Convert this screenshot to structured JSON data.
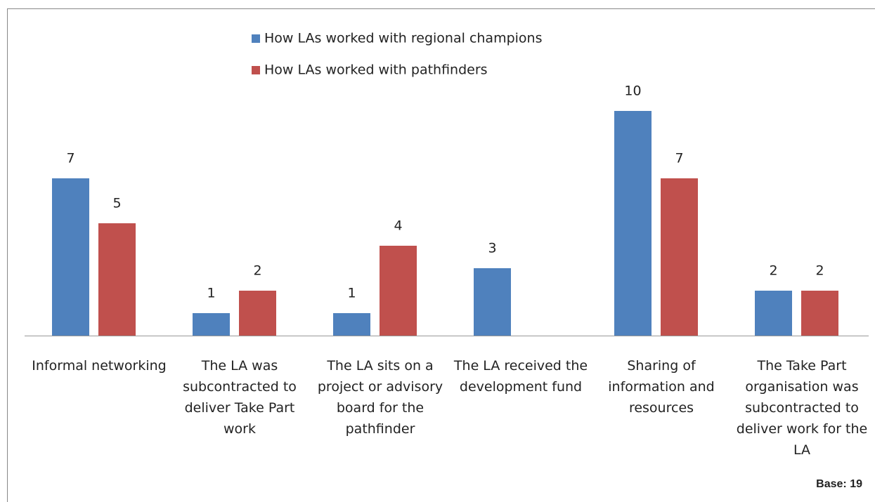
{
  "chart_data": {
    "type": "bar",
    "categories": [
      "Informal networking",
      "The LA was subcontracted to deliver Take Part work",
      "The LA sits on a project or advisory board for the pathfinder",
      "The LA received the development fund",
      "Sharing of information and resources",
      "The Take Part organisation was subcontracted to deliver work for the LA"
    ],
    "series": [
      {
        "name": "How LAs worked with regional champions",
        "color": "#4f81bd",
        "values": [
          7,
          1,
          1,
          3,
          10,
          2
        ]
      },
      {
        "name": "How LAs worked with pathfinders",
        "color": "#c0504d",
        "values": [
          5,
          2,
          4,
          null,
          7,
          2
        ]
      }
    ],
    "ylim": [
      0,
      12
    ],
    "annotation": "Base: 19"
  }
}
